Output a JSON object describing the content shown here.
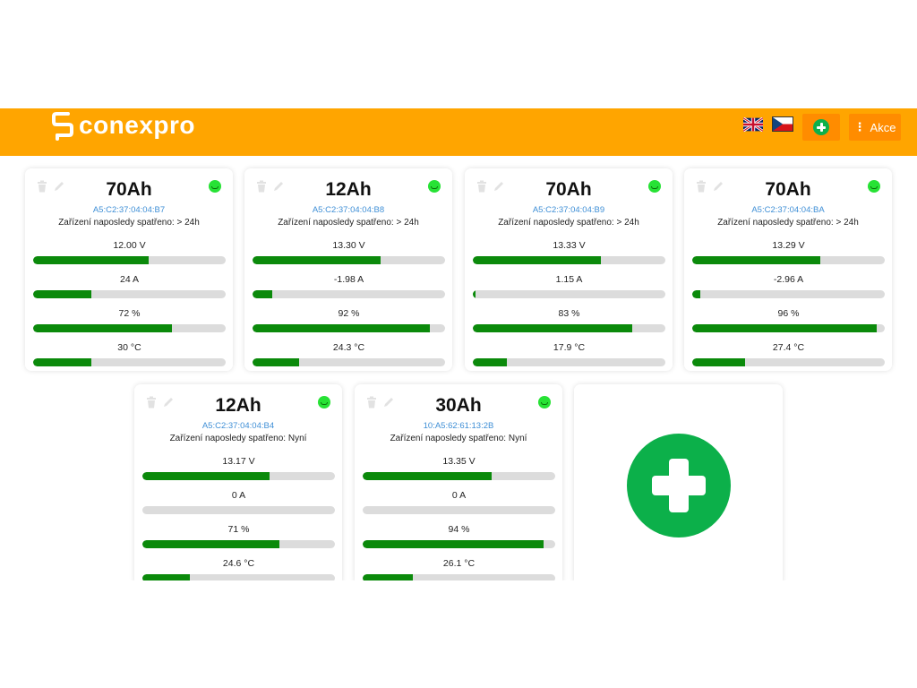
{
  "header": {
    "brand": "conexpro",
    "akce_label": "Akce",
    "colors": {
      "bar": "#ffa500",
      "button": "#ff8c00",
      "green": "#0cb04a"
    }
  },
  "devices": [
    {
      "capacity": "70Ah",
      "mac": "A5:C2:37:04:04:B7",
      "last_seen": "Zařízení naposledy spatřeno: > 24h",
      "status": "online",
      "metrics": [
        {
          "label": "12.00 V",
          "level": 0.6
        },
        {
          "label": "24 A",
          "level": 0.3
        },
        {
          "label": "72 %",
          "level": 0.72
        },
        {
          "label": "30 °C",
          "level": 0.3
        }
      ]
    },
    {
      "capacity": "12Ah",
      "mac": "A5:C2:37:04:04:B8",
      "last_seen": "Zařízení naposledy spatřeno: > 24h",
      "status": "online",
      "metrics": [
        {
          "label": "13.30 V",
          "level": 0.665
        },
        {
          "label": "-1.98 A",
          "level": 0.1
        },
        {
          "label": "92 %",
          "level": 0.92
        },
        {
          "label": "24.3 °C",
          "level": 0.243
        }
      ]
    },
    {
      "capacity": "70Ah",
      "mac": "A5:C2:37:04:04:B9",
      "last_seen": "Zařízení naposledy spatřeno: > 24h",
      "status": "online",
      "metrics": [
        {
          "label": "13.33 V",
          "level": 0.6665
        },
        {
          "label": "1.15 A",
          "level": 0.015
        },
        {
          "label": "83 %",
          "level": 0.83
        },
        {
          "label": "17.9 °C",
          "level": 0.179
        }
      ]
    },
    {
      "capacity": "70Ah",
      "mac": "A5:C2:37:04:04:BA",
      "last_seen": "Zařízení naposledy spatřeno: > 24h",
      "status": "online",
      "metrics": [
        {
          "label": "13.29 V",
          "level": 0.6645
        },
        {
          "label": "-2.96 A",
          "level": 0.04
        },
        {
          "label": "96 %",
          "level": 0.96
        },
        {
          "label": "27.4 °C",
          "level": 0.274
        }
      ]
    },
    {
      "capacity": "12Ah",
      "mac": "A5:C2:37:04:04:B4",
      "last_seen": "Zařízení naposledy spatřeno: Nyní",
      "status": "online",
      "metrics": [
        {
          "label": "13.17 V",
          "level": 0.6585
        },
        {
          "label": "0 A",
          "level": 0
        },
        {
          "label": "71 %",
          "level": 0.71
        },
        {
          "label": "24.6 °C",
          "level": 0.246
        }
      ]
    },
    {
      "capacity": "30Ah",
      "mac": "10:A5:62:61:13:2B",
      "last_seen": "Zařízení naposledy spatřeno: Nyní",
      "status": "online",
      "metrics": [
        {
          "label": "13.35 V",
          "level": 0.6675
        },
        {
          "label": "0 A",
          "level": 0
        },
        {
          "label": "94 %",
          "level": 0.94
        },
        {
          "label": "26.1 °C",
          "level": 0.261
        }
      ]
    }
  ]
}
